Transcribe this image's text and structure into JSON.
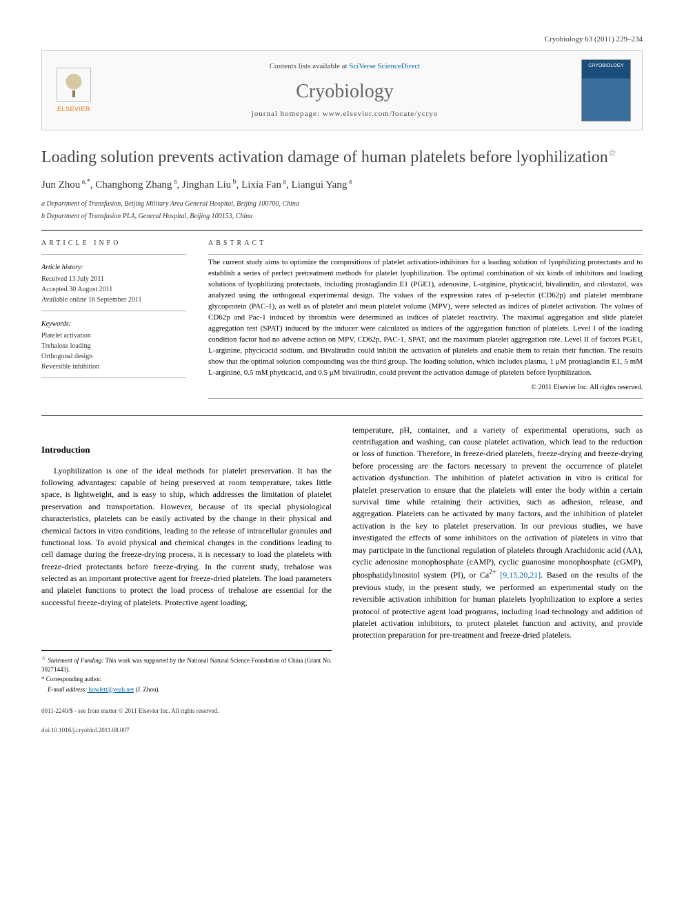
{
  "citation": "Cryobiology 63 (2011) 229–234",
  "header": {
    "contents_prefix": "Contents lists available at ",
    "contents_link": "SciVerse ScienceDirect",
    "journal_name": "Cryobiology",
    "homepage_prefix": "journal homepage: ",
    "homepage_url": "www.elsevier.com/locate/ycryo",
    "publisher": "ELSEVIER",
    "cover_label": "CRYOBIOLOGY"
  },
  "title": "Loading solution prevents activation damage of human platelets before lyophilization",
  "title_star": "☆",
  "authors_html": "Jun Zhou<sup> a,*</sup>, Changhong Zhang<sup> a</sup>, Jinghan Liu<sup> b</sup>, Lixia Fan<sup> a</sup>, Liangui Yang<sup> a</sup>",
  "affiliations": [
    "a Department of Transfusion, Beijing Military Area General Hospital, Beijing 100700, China",
    "b Department of Transfusion PLA, General Hospital, Beijing 100153, China"
  ],
  "article_info": {
    "heading": "ARTICLE INFO",
    "history_label": "Article history:",
    "history": [
      "Received 13 July 2011",
      "Accepted 30 August 2011",
      "Available online 16 September 2011"
    ],
    "keywords_label": "Keywords:",
    "keywords": [
      "Platelet activation",
      "Trehalose loading",
      "Orthogonal design",
      "Reversible inhibition"
    ]
  },
  "abstract": {
    "heading": "ABSTRACT",
    "text": "The current study aims to optimize the compositions of platelet activation-inhibitors for a loading solution of lyophilizing protectants and to establish a series of perfect pretreatment methods for platelet lyophilization. The optimal combination of six kinds of inhibitors and loading solutions of lyophilizing protectants, including prostaglandin E1 (PGE1), adenosine, L-arginine, phyticacid, bivalirudin, and cilostazol, was analyzed using the orthogonal experimental design. The values of the expression rates of p-selectin (CD62p) and platelet membrane glycoprotein (PAC-1), as well as of platelet and mean platelet volume (MPV), were selected as indices of platelet activation. The values of CD62p and Pac-1 induced by thrombin were determined as indices of platelet reactivity. The maximal aggregation and slide platelet aggregation test (SPAT) induced by the inducer were calculated as indices of the aggregation function of platelets. Level I of the loading condition factor had no adverse action on MPV, CD62p, PAC-1, SPAT, and the maximum platelet aggregation rate. Level II of factors PGE1, L-arginine, phycicacid sodium, and Bivalirudin could inhibit the activation of platelets and enable them to retain their function. The results show that the optimal solution compounding was the third group. The loading solution, which includes plasma, 1 μM prostaglandin E1, 5 mM L-arginine, 0.5 mM phyticacid, and 0.5 μM bivalirudin, could prevent the activation damage of platelets before lyophilization.",
    "copyright": "© 2011 Elsevier Inc. All rights reserved."
  },
  "intro": {
    "heading": "Introduction",
    "col1": "Lyophilization is one of the ideal methods for platelet preservation. It has the following advantages: capable of being preserved at room temperature, takes little space, is lightweight, and is easy to ship, which addresses the limitation of platelet preservation and transportation. However, because of its special physiological characteristics, platelets can be easily activated by the change in their physical and chemical factors in vitro conditions, leading to the release of intracellular granules and functional loss. To avoid physical and chemical changes in the conditions leading to cell damage during the freeze-drying process, it is necessary to load the platelets with freeze-dried protectants before freeze-drying. In the current study, trehalose was selected as an important protective agent for freeze-dried platelets. The load parameters and platelet functions to protect the load process of trehalose are essential for the successful freeze-drying of platelets. Protective agent loading,",
    "col2_part1": "temperature, pH, container, and a variety of experimental operations, such as centrifugation and washing, can cause platelet activation, which lead to the reduction or loss of function. Therefore, in freeze-dried platelets, freeze-drying and freeze-drying before processing are the factors necessary to prevent the occurrence of platelet activation dysfunction. The inhibition of platelet activation in vitro is critical for platelet preservation to ensure that the platelets will enter the body within a certain survival time while retaining their activities, such as adhesion, release, and aggregation. Platelets can be activated by many factors, and the inhibition of platelet activation is the key to platelet preservation. In our previous studies, we have investigated the effects of some inhibitors on the activation of platelets in vitro that may participate in the functional regulation of platelets through Arachidonic acid (AA), cyclic adenosine monophosphate (cAMP), cyclic guanosine monophosphate (cGMP), phosphatidylinositol system (PI), or Ca",
    "col2_sup": "2+",
    "col2_refs": "[9,15,20,21]",
    "col2_part2": ". Based on the results of the previous study, in the present study, we performed an experimental study on the reversible activation inhibition for human platelets lyophilization to explore a series protocol of protective agent load programs, including load technology and addition of platelet activation inhibitors, to protect platelet function and activity, and provide protection preparation for pre-treatment and freeze-dried platelets."
  },
  "footnotes": {
    "funding_star": "☆",
    "funding_label": "Statement of Funding:",
    "funding_text": " This work was supported by the National Natural Science Foundation of China (Grant No. 30271443).",
    "corresponding_star": "*",
    "corresponding_text": " Corresponding author.",
    "email_label": "E-mail address:",
    "email": " howlett@yeah.net",
    "email_name": " (J. Zhou)."
  },
  "bottom": {
    "issn": "0011-2240/$ - see front matter © 2011 Elsevier Inc. All rights reserved.",
    "doi": "doi:10.1016/j.cryobiol.2011.08.007"
  }
}
